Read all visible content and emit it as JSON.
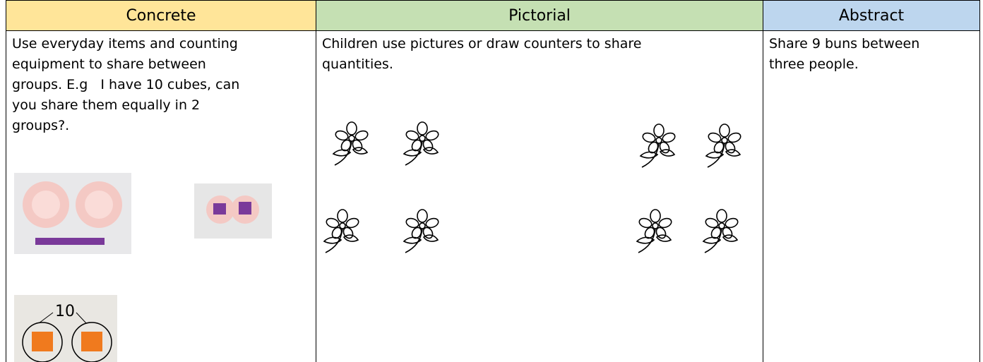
{
  "table": {
    "header": [
      "Concrete",
      "Pictorial",
      "Abstract"
    ],
    "body": [
      [
        "Use everyday items and counting",
        "equipment to share between",
        "groups. E.g   I have 10 cubes, can",
        "you share them equally in 2",
        "groups?."
      ],
      [
        "Children use pictures or draw counters to share",
        "quantities."
      ],
      [
        "Share 9 buns between",
        "three people."
      ]
    ],
    "photo_label": "10"
  }
}
